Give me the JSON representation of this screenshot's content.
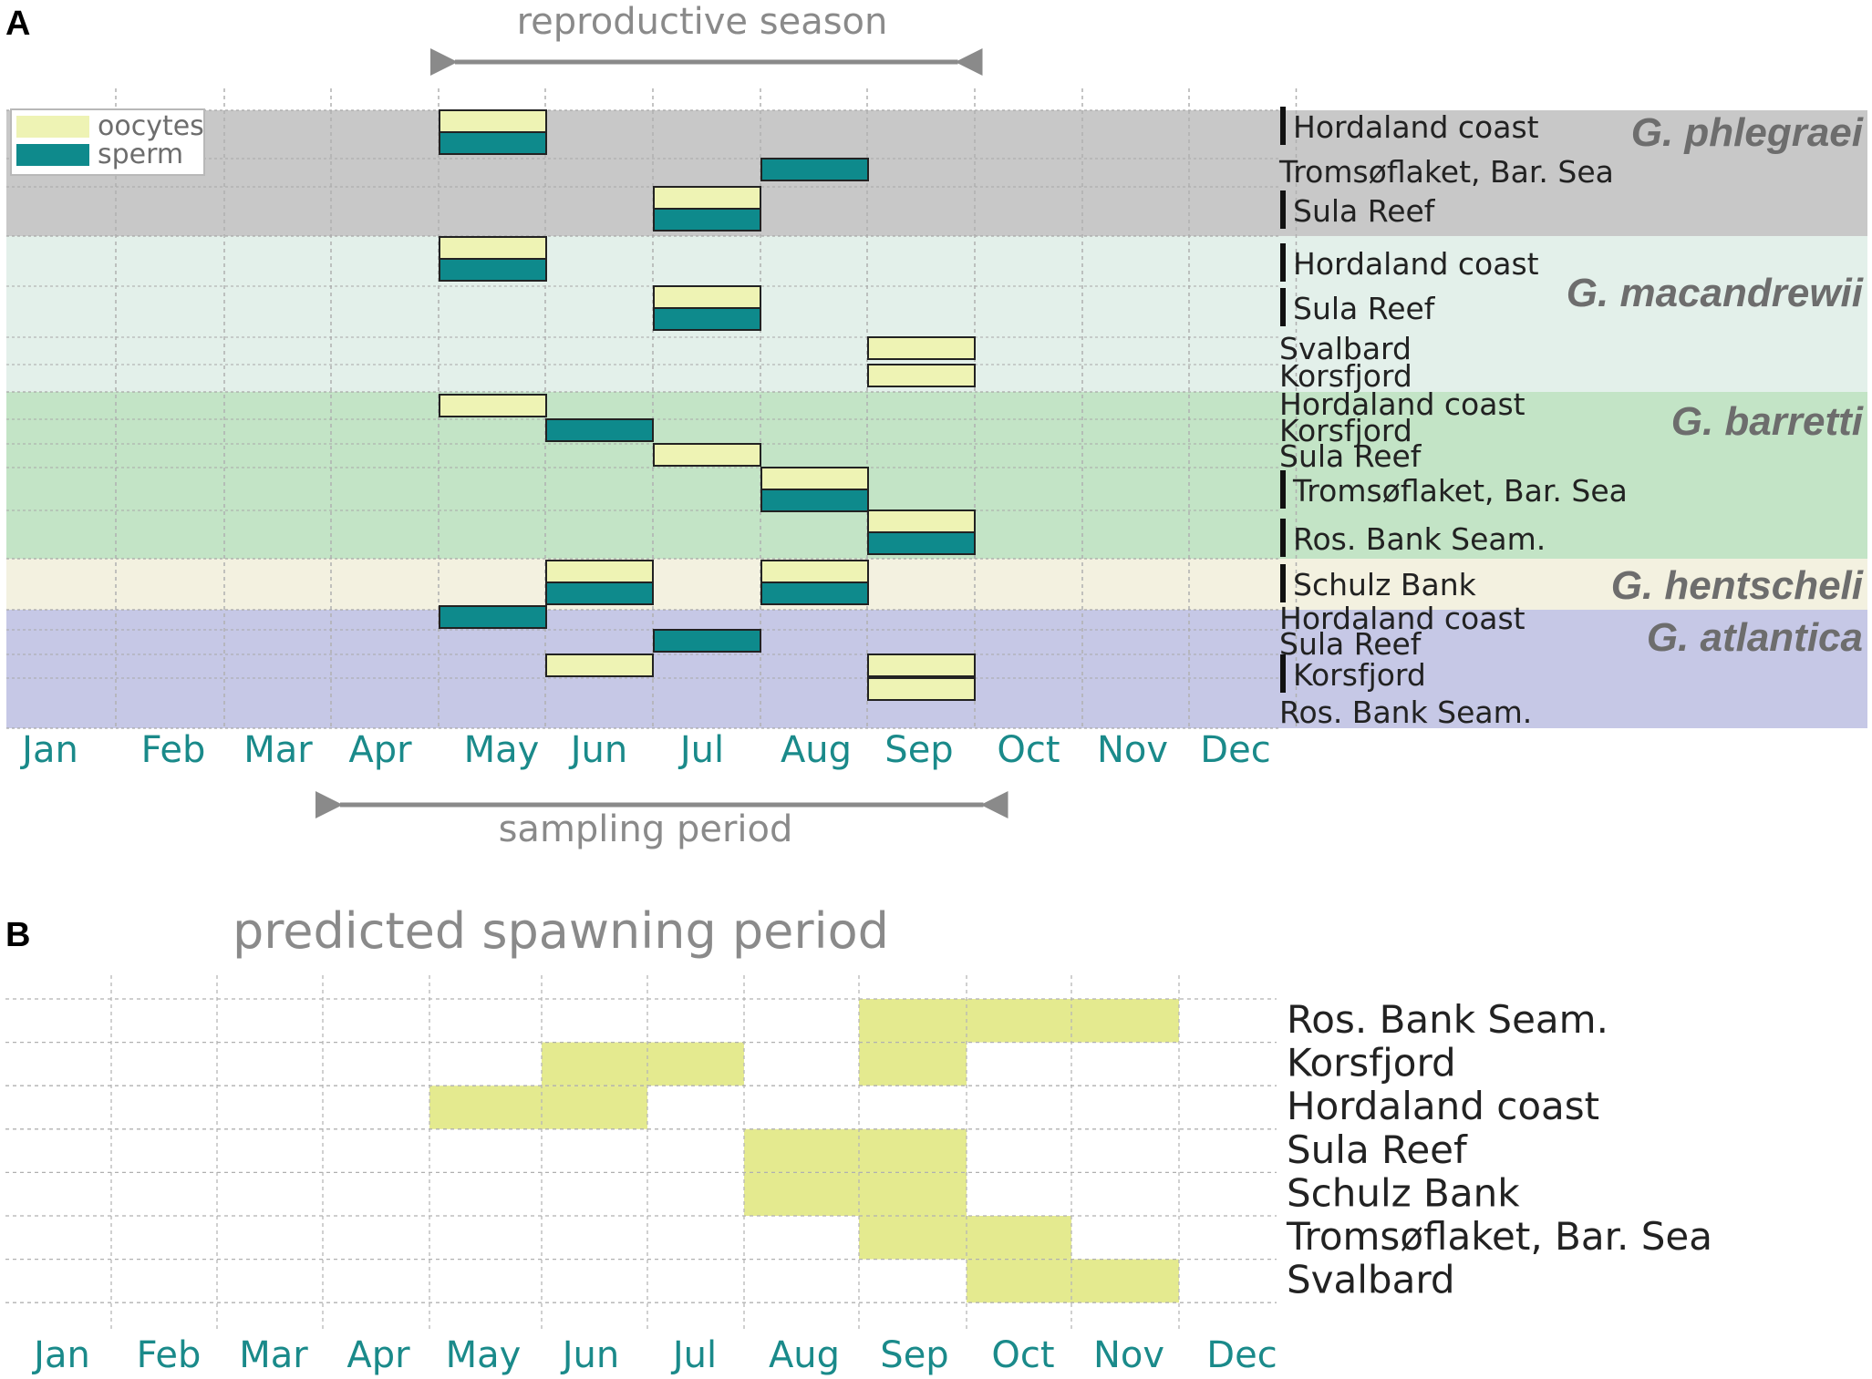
{
  "panels": {
    "a": "A",
    "b": "B"
  },
  "colors": {
    "oocytes": "#eef3b4",
    "sperm": "#0e8a8c",
    "predicted": "#e4ea8f",
    "month_label": "#1a8a8a",
    "G. phlegraei": "#c8c8c8",
    "G. macandrewii": "#e3f0ea",
    "G. barretti": "#c3e4c6",
    "G. hentscheli": "#f3f1e0",
    "G. atlantica": "#c6c8e6"
  },
  "legend": {
    "oocytes": "oocytes",
    "sperm": "sperm"
  },
  "annotations": {
    "reproductive_season": "reproductive season",
    "sampling_period": "sampling period"
  },
  "chart_data": [
    {
      "type": "timeline",
      "panel": "A",
      "x_categories": [
        "Jan",
        "Feb",
        "Mar",
        "Apr",
        "May",
        "Jun",
        "Jul",
        "Aug",
        "Sep",
        "Oct",
        "Nov",
        "Dec"
      ],
      "annotations": [
        {
          "label": "reproductive season",
          "from_month": "May",
          "to_month": "Sep"
        },
        {
          "label": "sampling period",
          "from_month": "Apr",
          "to_month": "Sep"
        }
      ],
      "species": [
        {
          "name": "G. phlegraei",
          "sites": [
            {
              "label": "Hordaland coast",
              "marker": true,
              "bars": [
                {
                  "month": "May",
                  "oocytes": true,
                  "sperm": true
                }
              ]
            },
            {
              "label": "Tromsøflaket, Bar. Sea",
              "marker": false,
              "bars": [
                {
                  "month": "Aug",
                  "oocytes": false,
                  "sperm": true
                }
              ]
            },
            {
              "label": "Sula Reef",
              "marker": true,
              "bars": [
                {
                  "month": "Jul",
                  "oocytes": true,
                  "sperm": true
                }
              ]
            }
          ]
        },
        {
          "name": "G. macandrewii",
          "sites": [
            {
              "label": "Hordaland coast",
              "marker": true,
              "bars": [
                {
                  "month": "May",
                  "oocytes": true,
                  "sperm": true
                }
              ]
            },
            {
              "label": "Sula Reef",
              "marker": true,
              "bars": [
                {
                  "month": "Jul",
                  "oocytes": true,
                  "sperm": true
                }
              ]
            },
            {
              "label": "Svalbard",
              "marker": false,
              "bars": [
                {
                  "month": "Sep",
                  "oocytes": true,
                  "sperm": false
                }
              ]
            },
            {
              "label": "Korsfjord",
              "marker": false,
              "bars": [
                {
                  "month": "Sep",
                  "oocytes": true,
                  "sperm": false
                }
              ]
            }
          ]
        },
        {
          "name": "G. barretti",
          "sites": [
            {
              "label": "Hordaland coast",
              "marker": false,
              "bars": [
                {
                  "month": "May",
                  "oocytes": true,
                  "sperm": false
                }
              ]
            },
            {
              "label": "Korsfjord",
              "marker": false,
              "bars": [
                {
                  "month": "Jun",
                  "oocytes": false,
                  "sperm": true
                }
              ]
            },
            {
              "label": "Sula Reef",
              "marker": false,
              "bars": [
                {
                  "month": "Jul",
                  "oocytes": true,
                  "sperm": false
                }
              ]
            },
            {
              "label": "Tromsøflaket, Bar. Sea",
              "marker": true,
              "bars": [
                {
                  "month": "Aug",
                  "oocytes": true,
                  "sperm": true
                }
              ]
            },
            {
              "label": "Ros. Bank Seam.",
              "marker": true,
              "bars": [
                {
                  "month": "Sep",
                  "oocytes": true,
                  "sperm": true
                }
              ]
            }
          ]
        },
        {
          "name": "G. hentscheli",
          "sites": [
            {
              "label": "Schulz Bank",
              "marker": true,
              "bars": [
                {
                  "month": "Jun",
                  "oocytes": true,
                  "sperm": true
                },
                {
                  "month": "Aug",
                  "oocytes": true,
                  "sperm": true
                }
              ]
            }
          ]
        },
        {
          "name": "G. atlantica",
          "sites": [
            {
              "label": "Hordaland coast",
              "marker": false,
              "bars": [
                {
                  "month": "May",
                  "oocytes": false,
                  "sperm": true
                }
              ]
            },
            {
              "label": "Sula Reef",
              "marker": false,
              "bars": [
                {
                  "month": "Jul",
                  "oocytes": false,
                  "sperm": true
                }
              ]
            },
            {
              "label": "Korsfjord",
              "marker": true,
              "bars": [
                {
                  "month": "Jun",
                  "oocytes": true,
                  "sperm": false
                },
                {
                  "month": "Sep",
                  "oocytes": true,
                  "sperm": true
                }
              ]
            },
            {
              "label": "Ros. Bank Seam.",
              "marker": false,
              "bars": [
                {
                  "month": "Sep",
                  "oocytes": true,
                  "sperm": false
                }
              ]
            }
          ]
        }
      ]
    },
    {
      "type": "timeline",
      "panel": "B",
      "title": "predicted spawning period",
      "x_categories": [
        "Jan",
        "Feb",
        "Mar",
        "Apr",
        "May",
        "Jun",
        "Jul",
        "Aug",
        "Sep",
        "Oct",
        "Nov",
        "Dec"
      ],
      "rows": [
        {
          "label": "Ros. Bank Seam.",
          "spans": [
            [
              "Sep",
              "Nov"
            ]
          ]
        },
        {
          "label": "Korsfjord",
          "spans": [
            [
              "Jun",
              "Jul"
            ],
            [
              "Sep",
              "Sep"
            ]
          ]
        },
        {
          "label": "Hordaland coast",
          "spans": [
            [
              "May",
              "Jun"
            ]
          ]
        },
        {
          "label": "Sula Reef",
          "spans": [
            [
              "Aug",
              "Sep"
            ]
          ]
        },
        {
          "label": "Schulz Bank",
          "spans": [
            [
              "Aug",
              "Sep"
            ]
          ]
        },
        {
          "label": "Tromsøflaket, Bar. Sea",
          "spans": [
            [
              "Sep",
              "Oct"
            ]
          ]
        },
        {
          "label": "Svalbard",
          "spans": [
            [
              "Oct",
              "Nov"
            ]
          ]
        }
      ]
    }
  ]
}
